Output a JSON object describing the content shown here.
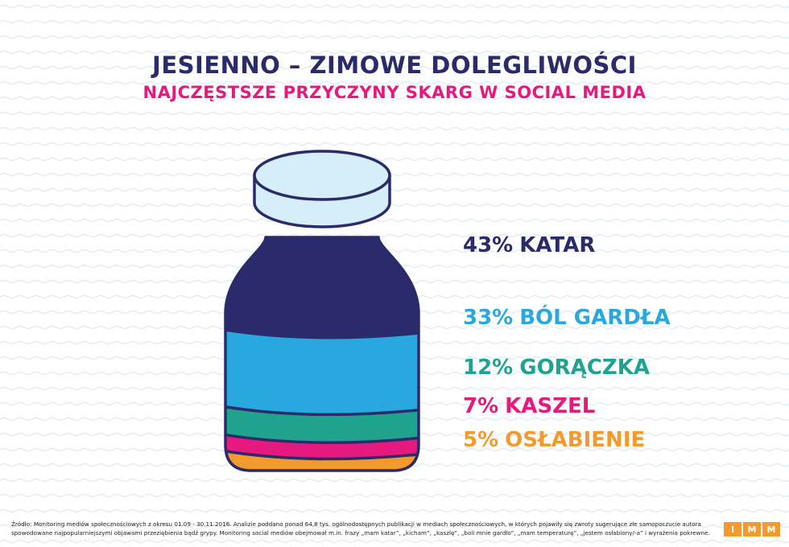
{
  "title": "JESIENNO – ZIMOWE DOLEGLIWOŚCI",
  "subtitle": "NAJCZĘSTSZE PRZYCZYNY SKARG W SOCIAL MEDIA",
  "chart_data": {
    "type": "bar",
    "title": "JESIENNO – ZIMOWE DOLEGLIWOŚCI",
    "subtitle": "NAJCZĘSTSZE PRZYCZYNY SKARG W SOCIAL MEDIA",
    "unit": "%",
    "categories": [
      "KATAR",
      "BÓL GARDŁA",
      "GORĄCZKA",
      "KASZEL",
      "OSŁABIENIE"
    ],
    "values": [
      43,
      33,
      12,
      7,
      5
    ],
    "value_labels": [
      "43%",
      "33%",
      "12%",
      "7%",
      "5%"
    ],
    "colors": [
      "#2b2a6b",
      "#29a8e0",
      "#1fa38f",
      "#e5197e",
      "#f39a2e"
    ]
  },
  "jar_cap_color": "#d6eef9",
  "outline_color": "#2b2a6b",
  "background_color": "#ffffff",
  "wave_color": "#dceaf4",
  "footer_text": "Źródło: Monitoring mediów społecznościowych z okresu 01.09 - 30.11.2016. Analizie poddano ponad 64,8 tys. ogólnodostępnych publikacji w mediach społecznościowych, w których pojawiły się zwroty sugerujące złe samopoczucie autora spowodowane najpopularniejszymi objawami przeziębienia bądź grypy. Monitoring social mediów obejmował m.in. frazy „mam katar”, „kicham”, „kaszlę”, „boli mnie gardło”, „mam temperaturę”, „jestem osłabiony/-a” i wyrażenia pokrewne.",
  "logo_letters": [
    "I",
    "M",
    "M"
  ]
}
